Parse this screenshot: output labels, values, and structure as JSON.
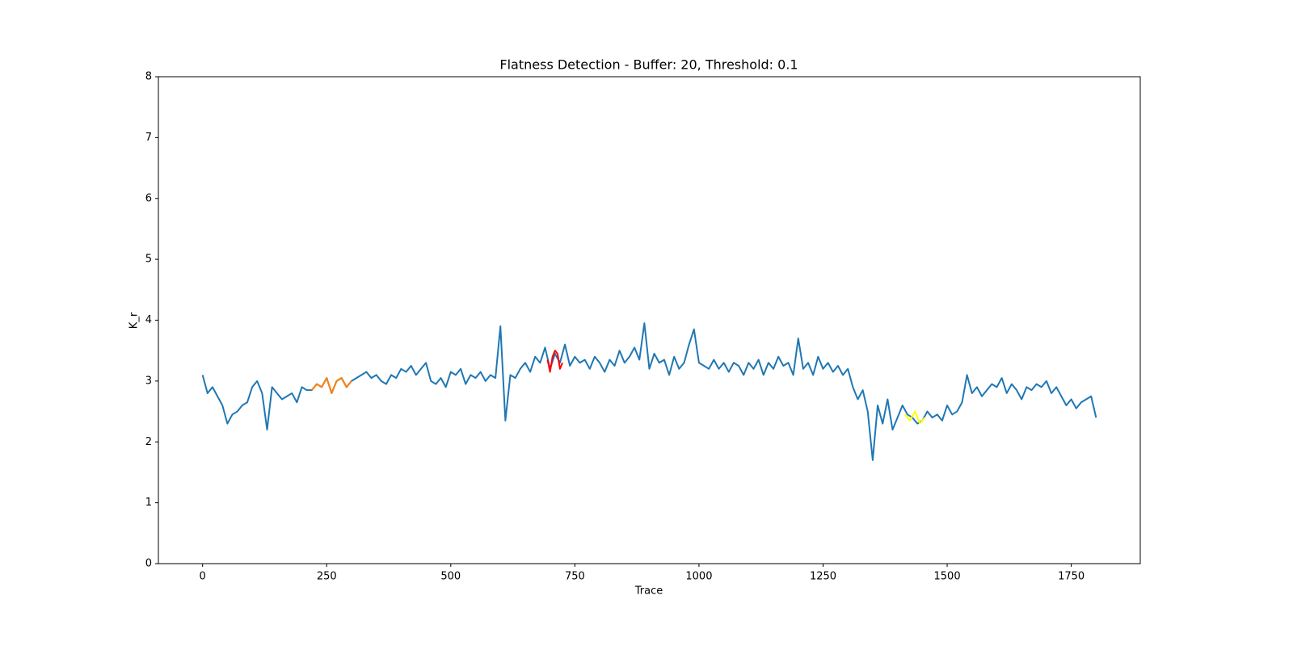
{
  "chart_data": {
    "type": "line",
    "title": "Flatness Detection - Buffer: 20, Threshold: 0.1",
    "x_label": "Trace",
    "y_label": "K_r",
    "xlim": [
      -89,
      1889
    ],
    "ylim": [
      0,
      8
    ],
    "xticks": [
      0,
      250,
      500,
      750,
      1000,
      1250,
      1500,
      1750
    ],
    "yticks": [
      0,
      1,
      2,
      3,
      4,
      5,
      6,
      7,
      8
    ],
    "grid": false,
    "series": [
      {
        "color": "#1f77b4",
        "x": [
          0,
          10,
          20,
          30,
          40,
          50,
          60,
          70,
          80,
          90,
          100,
          110,
          120,
          130,
          140,
          150,
          160,
          170,
          180,
          190,
          200,
          210,
          220,
          230,
          240,
          250,
          260,
          270,
          280,
          290,
          300,
          310,
          320,
          330,
          340,
          350,
          360,
          370,
          380,
          390,
          400,
          410,
          420,
          430,
          440,
          450,
          460,
          470,
          480,
          490,
          500,
          510,
          520,
          530,
          540,
          550,
          560,
          570,
          580,
          590,
          600,
          610,
          620,
          630,
          640,
          650,
          660,
          670,
          680,
          690,
          700,
          710,
          720,
          730,
          740,
          750,
          760,
          770,
          780,
          790,
          800,
          810,
          820,
          830,
          840,
          850,
          860,
          870,
          880,
          890,
          900,
          910,
          920,
          930,
          940,
          950,
          960,
          970,
          980,
          990,
          1000,
          1010,
          1020,
          1030,
          1040,
          1050,
          1060,
          1070,
          1080,
          1090,
          1100,
          1110,
          1120,
          1130,
          1140,
          1150,
          1160,
          1170,
          1180,
          1190,
          1200,
          1210,
          1220,
          1230,
          1240,
          1250,
          1260,
          1270,
          1280,
          1290,
          1300,
          1310,
          1320,
          1330,
          1340,
          1350,
          1360,
          1370,
          1380,
          1390,
          1400,
          1410,
          1420,
          1430,
          1440,
          1450,
          1460,
          1470,
          1480,
          1490,
          1500,
          1510,
          1520,
          1530,
          1540,
          1550,
          1560,
          1570,
          1580,
          1590,
          1600,
          1610,
          1620,
          1630,
          1640,
          1650,
          1660,
          1670,
          1680,
          1690,
          1700,
          1710,
          1720,
          1730,
          1740,
          1750,
          1760,
          1770,
          1780,
          1790,
          1800
        ],
        "values": [
          3.1,
          2.8,
          2.9,
          2.75,
          2.6,
          2.3,
          2.45,
          2.5,
          2.6,
          2.65,
          2.9,
          3.0,
          2.8,
          2.2,
          2.9,
          2.8,
          2.7,
          2.75,
          2.8,
          2.65,
          2.9,
          2.85,
          2.85,
          2.95,
          2.9,
          3.05,
          2.8,
          3.0,
          3.05,
          2.9,
          3.0,
          3.05,
          3.1,
          3.15,
          3.05,
          3.1,
          3.0,
          2.95,
          3.1,
          3.05,
          3.2,
          3.15,
          3.25,
          3.1,
          3.2,
          3.3,
          3.0,
          2.95,
          3.05,
          2.9,
          3.15,
          3.1,
          3.2,
          2.95,
          3.1,
          3.05,
          3.15,
          3.0,
          3.1,
          3.05,
          3.9,
          2.35,
          3.1,
          3.05,
          3.2,
          3.3,
          3.15,
          3.4,
          3.3,
          3.55,
          3.2,
          3.45,
          3.3,
          3.6,
          3.25,
          3.4,
          3.3,
          3.35,
          3.2,
          3.4,
          3.3,
          3.15,
          3.35,
          3.25,
          3.5,
          3.3,
          3.4,
          3.55,
          3.35,
          3.95,
          3.2,
          3.45,
          3.3,
          3.35,
          3.1,
          3.4,
          3.2,
          3.3,
          3.6,
          3.85,
          3.3,
          3.25,
          3.2,
          3.35,
          3.2,
          3.3,
          3.15,
          3.3,
          3.25,
          3.1,
          3.3,
          3.2,
          3.35,
          3.1,
          3.3,
          3.2,
          3.4,
          3.25,
          3.3,
          3.1,
          3.7,
          3.2,
          3.3,
          3.1,
          3.4,
          3.2,
          3.3,
          3.15,
          3.25,
          3.1,
          3.2,
          2.9,
          2.7,
          2.85,
          2.5,
          1.7,
          2.6,
          2.3,
          2.7,
          2.2,
          2.4,
          2.6,
          2.45,
          2.4,
          2.3,
          2.35,
          2.5,
          2.4,
          2.45,
          2.35,
          2.6,
          2.45,
          2.5,
          2.65,
          3.1,
          2.8,
          2.9,
          2.75,
          2.85,
          2.95,
          2.9,
          3.05,
          2.8,
          2.95,
          2.85,
          2.7,
          2.9,
          2.85,
          2.95,
          2.9,
          3.0,
          2.8,
          2.9,
          2.75,
          2.6,
          2.7,
          2.55,
          2.65,
          2.7,
          2.75,
          2.4
        ]
      },
      {
        "color": "#ff7f0e",
        "x": [
          220,
          230,
          240,
          250,
          260,
          270,
          280,
          290,
          300
        ],
        "values": [
          2.85,
          2.95,
          2.9,
          3.05,
          2.8,
          3.0,
          3.05,
          2.9,
          3.0
        ]
      },
      {
        "color": "#ff0000",
        "x": [
          695,
          700,
          705,
          710,
          715,
          720,
          725
        ],
        "values": [
          3.35,
          3.15,
          3.4,
          3.5,
          3.45,
          3.2,
          3.3
        ]
      },
      {
        "color": "#ffff00",
        "x": [
          1415,
          1425,
          1435,
          1445,
          1455
        ],
        "values": [
          2.45,
          2.35,
          2.5,
          2.3,
          2.4
        ]
      }
    ]
  }
}
